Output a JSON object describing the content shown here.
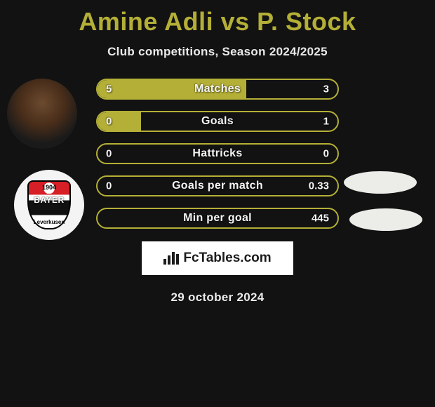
{
  "title": "Amine Adli vs P. Stock",
  "subtitle": "Club competitions, Season 2024/2025",
  "date": "29 october 2024",
  "logo_text": "FcTables.com",
  "colors": {
    "accent": "#b4af37",
    "background": "#121212",
    "bar_border": "#b4af37",
    "bar_fill": "#b4af37",
    "text_light": "#f4f4f4",
    "opp_badge_bg": "#ecece8",
    "logo_bg": "#ffffff",
    "logo_text": "#1c1c1c"
  },
  "left_player": {
    "name": "Amine Adli",
    "club": "Bayer Leverkusen",
    "club_year": "1904"
  },
  "stats": [
    {
      "label": "Matches",
      "left_value": "5",
      "right_value": "3",
      "left_fill_pct": 62,
      "right_fill_pct": 0,
      "has_opp_badge": true
    },
    {
      "label": "Goals",
      "left_value": "0",
      "right_value": "1",
      "left_fill_pct": 18,
      "right_fill_pct": 0,
      "has_opp_badge": true
    },
    {
      "label": "Hattricks",
      "left_value": "0",
      "right_value": "0",
      "left_fill_pct": 0,
      "right_fill_pct": 0,
      "has_opp_badge": false
    },
    {
      "label": "Goals per match",
      "left_value": "0",
      "right_value": "0.33",
      "left_fill_pct": 0,
      "right_fill_pct": 0,
      "has_opp_badge": false
    },
    {
      "label": "Min per goal",
      "left_value": "",
      "right_value": "445",
      "left_fill_pct": 0,
      "right_fill_pct": 0,
      "has_opp_badge": false
    }
  ]
}
